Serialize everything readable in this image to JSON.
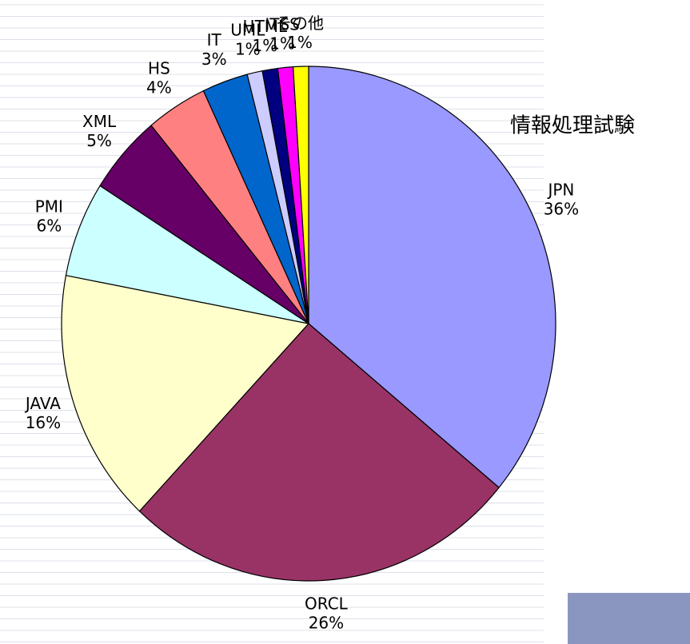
{
  "chart_data": {
    "type": "pie",
    "title": "情報処理試験",
    "categories": [
      "JPN",
      "ORCL",
      "JAVA",
      "PMI",
      "XML",
      "HS",
      "IT",
      "UML",
      "HTML",
      "ITSS",
      "その他"
    ],
    "values": [
      36,
      26,
      16,
      6,
      5,
      4,
      3,
      1,
      1,
      1,
      1
    ],
    "value_labels": [
      "36%",
      "26%",
      "16%",
      "6%",
      "5%",
      "4%",
      "3%",
      "1%",
      "1%",
      "1%",
      "1%"
    ],
    "colors": [
      "#9999ff",
      "#993366",
      "#ffffcc",
      "#ccffff",
      "#660066",
      "#ff8080",
      "#0066cc",
      "#ccccff",
      "#000080",
      "#ff00ff",
      "#ffff00"
    ]
  }
}
